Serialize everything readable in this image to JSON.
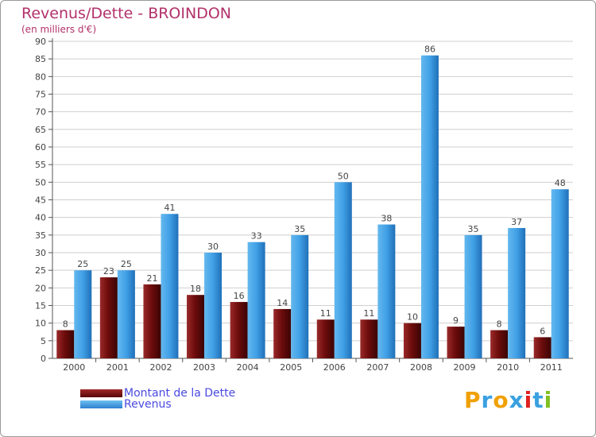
{
  "chart_data": {
    "type": "bar",
    "title": "Revenus/Dette - BROINDON",
    "subtitle": "(en milliers d'€)",
    "xlabel": "",
    "ylabel": "",
    "ylim": [
      0,
      90
    ],
    "yticks": [
      0,
      5,
      10,
      15,
      20,
      25,
      30,
      35,
      40,
      45,
      50,
      55,
      60,
      65,
      70,
      75,
      80,
      85,
      90
    ],
    "grid": true,
    "legend_position": "bottom-left",
    "categories": [
      "2000",
      "2001",
      "2002",
      "2003",
      "2004",
      "2005",
      "2006",
      "2007",
      "2008",
      "2009",
      "2010",
      "2011"
    ],
    "series": [
      {
        "name": "Montant de la Dette",
        "color": "#7a1010",
        "values": [
          8,
          23,
          21,
          18,
          16,
          14,
          11,
          11,
          10,
          9,
          8,
          6
        ]
      },
      {
        "name": "Revenus",
        "color": "#3f9fe4",
        "values": [
          25,
          25,
          41,
          30,
          33,
          35,
          50,
          38,
          86,
          35,
          37,
          48
        ]
      }
    ]
  },
  "logo": {
    "text": "Proxiti",
    "letter_colors": [
      "#f0a000",
      "#3aa0e0",
      "#f0a000",
      "#3aa0e0",
      "#e02020",
      "#3aa0e0",
      "#80c020"
    ]
  }
}
